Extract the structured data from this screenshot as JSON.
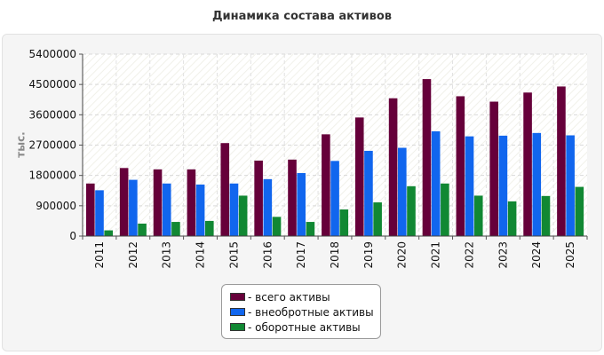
{
  "chart_data": {
    "type": "bar",
    "title": "Динамика состава активов",
    "xlabel": "",
    "ylabel": "тыс.",
    "ylim": [
      0,
      5400000
    ],
    "yticks": [
      0,
      900000,
      1800000,
      2700000,
      3600000,
      4500000,
      5400000
    ],
    "ytick_labels": [
      "0",
      "900000",
      "1800000",
      "2700000",
      "3600000",
      "4500000",
      "5400000"
    ],
    "grid": true,
    "legend_position": "bottom",
    "categories": [
      "2011",
      "2012",
      "2013",
      "2014",
      "2015",
      "2016",
      "2017",
      "2018",
      "2019",
      "2020",
      "2021",
      "2022",
      "2023",
      "2024",
      "2025"
    ],
    "series": [
      {
        "name": "- всего активы",
        "color": "#66003a",
        "values": [
          1560000,
          2020000,
          1980000,
          1980000,
          2760000,
          2240000,
          2270000,
          3020000,
          3520000,
          4090000,
          4660000,
          4150000,
          3990000,
          4260000,
          4440000
        ]
      },
      {
        "name": "- внеобротные активы",
        "color": "#1166ee",
        "values": [
          1360000,
          1670000,
          1560000,
          1530000,
          1560000,
          1690000,
          1870000,
          2230000,
          2530000,
          2620000,
          3110000,
          2960000,
          2980000,
          3060000,
          2990000
        ]
      },
      {
        "name": "- оборотные активы",
        "color": "#118833",
        "values": [
          170000,
          370000,
          420000,
          450000,
          1200000,
          570000,
          420000,
          790000,
          1000000,
          1480000,
          1560000,
          1200000,
          1030000,
          1190000,
          1460000
        ]
      }
    ]
  }
}
